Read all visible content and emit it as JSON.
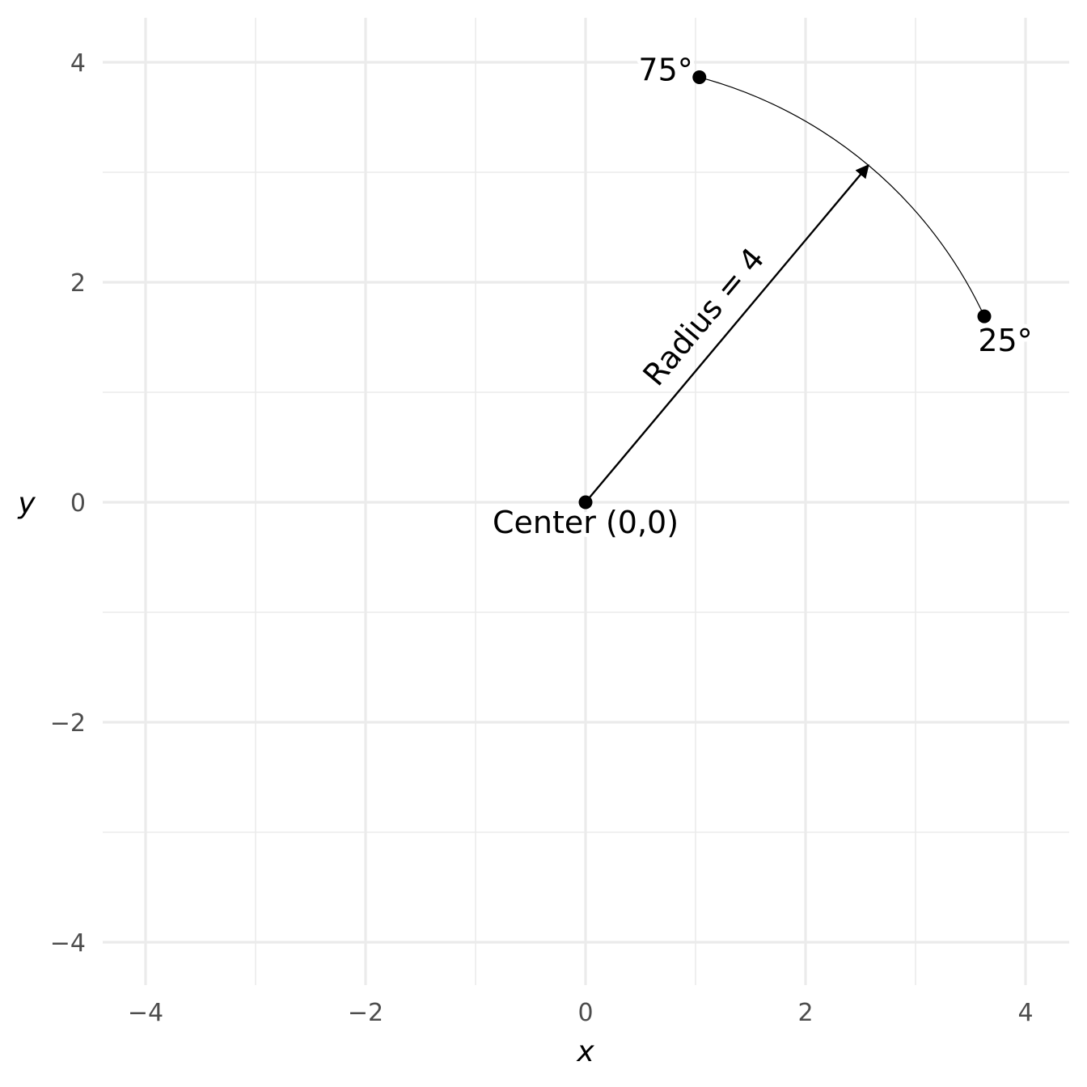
{
  "chart_data": {
    "type": "scatter",
    "title": "",
    "xlabel": "x",
    "ylabel": "y",
    "xlim": [
      -4.2,
      4.2
    ],
    "ylim": [
      -4.4,
      4.4
    ],
    "x_ticks": [
      -4,
      -2,
      0,
      2,
      4
    ],
    "x_tick_labels": [
      "−4",
      "−2",
      "0",
      "2",
      "4"
    ],
    "y_ticks": [
      -4,
      -2,
      0,
      2,
      4
    ],
    "y_tick_labels": [
      "−4",
      "−2",
      "0",
      "2",
      "4"
    ],
    "grid": true,
    "legend": "none",
    "points": [
      {
        "x": 0,
        "y": 0,
        "label": "Center (0,0)"
      },
      {
        "x": 1.035,
        "y": 3.864,
        "label": "75°"
      },
      {
        "x": 3.625,
        "y": 1.69,
        "label": "25°"
      }
    ],
    "arc": {
      "center": [
        0,
        0
      ],
      "radius": 4,
      "start_angle_deg": 25,
      "end_angle_deg": 75
    },
    "radius_arrow": {
      "from": [
        0,
        0
      ],
      "to": [
        2.571,
        3.064
      ],
      "label": "Radius = 4"
    }
  }
}
